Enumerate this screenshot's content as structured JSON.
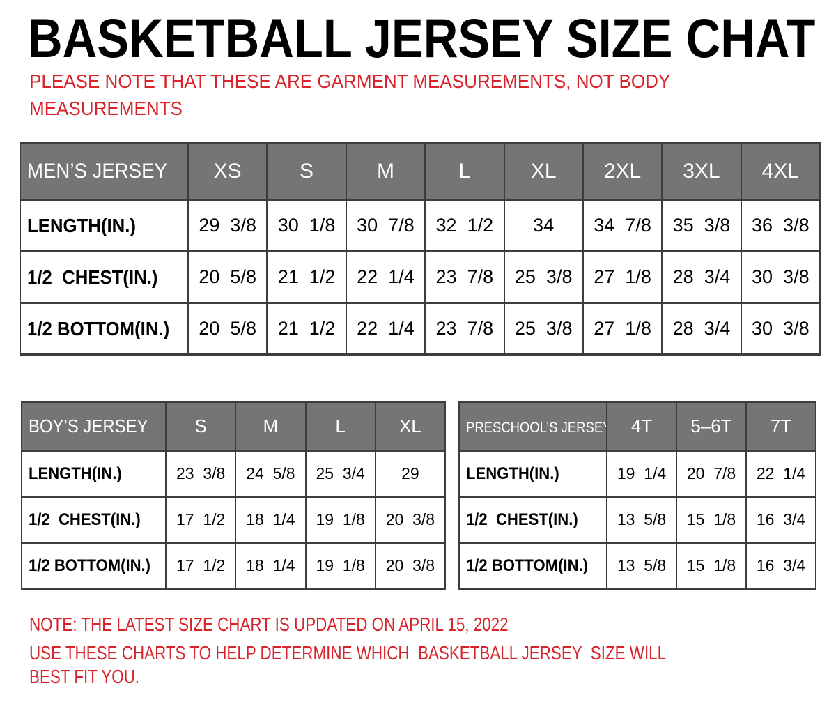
{
  "page": {
    "title": "BASKETBALL JERSEY SIZE CHAT",
    "top_note": "PLEASE NOTE THAT THESE ARE GARMENT MEASUREMENTS, NOT BODY\nMEASUREMENTS",
    "bottom_notes": [
      "NOTE: THE LATEST SIZE CHART IS UPDATED ON APRIL 15, 2022",
      "USE THESE CHARTS TO HELP DETERMINE WHICH  BASKETBALL JERSEY  SIZE WILL BEST FIT YOU."
    ]
  },
  "colors": {
    "accent_red": "#d8232b",
    "header_gray": "#757575",
    "header_text": "#ffffff",
    "border": "#3d3d3d",
    "text": "#000000",
    "background": "#ffffff"
  },
  "tables": [
    {
      "id": "mens",
      "name": "MEN’S JERSEY",
      "sizes": [
        "XS",
        "S",
        "M",
        "L",
        "XL",
        "2XL",
        "3XL",
        "4XL"
      ],
      "rows": [
        {
          "label": "LENGTH(IN.)",
          "values": [
            "29  3/8",
            "30  1/8",
            "30  7/8",
            "32  1/2",
            "34",
            "34  7/8",
            "35  3/8",
            "36  3/8"
          ]
        },
        {
          "label": "1/2  CHEST(IN.)",
          "values": [
            "20  5/8",
            "21  1/2",
            "22  1/4",
            "23  7/8",
            "25  3/8",
            "27  1/8",
            "28  3/4",
            "30  3/8"
          ]
        },
        {
          "label": "1/2 BOTTOM(IN.)",
          "values": [
            "20  5/8",
            "21  1/2",
            "22  1/4",
            "23  7/8",
            "25  3/8",
            "27  1/8",
            "28  3/4",
            "30  3/8"
          ]
        }
      ]
    },
    {
      "id": "boys",
      "name": "BOY’S JERSEY",
      "sizes": [
        "S",
        "M",
        "L",
        "XL"
      ],
      "rows": [
        {
          "label": "LENGTH(IN.)",
          "values": [
            "23  3/8",
            "24  5/8",
            "25  3/4",
            "29"
          ]
        },
        {
          "label": "1/2  CHEST(IN.)",
          "values": [
            "17  1/2",
            "18  1/4",
            "19  1/8",
            "20  3/8"
          ]
        },
        {
          "label": "1/2 BOTTOM(IN.)",
          "values": [
            "17  1/2",
            "18  1/4",
            "19  1/8",
            "20  3/8"
          ]
        }
      ]
    },
    {
      "id": "preschool",
      "name": "PRESCHOOL’S JERSEY",
      "sizes": [
        "4T",
        "5–6T",
        "7T"
      ],
      "rows": [
        {
          "label": "LENGTH(IN.)",
          "values": [
            "19  1/4",
            "20  7/8",
            "22  1/4"
          ]
        },
        {
          "label": "1/2  CHEST(IN.)",
          "values": [
            "13  5/8",
            "15  1/8",
            "16  3/4"
          ]
        },
        {
          "label": "1/2 BOTTOM(IN.)",
          "values": [
            "13  5/8",
            "15  1/8",
            "16  3/4"
          ]
        }
      ]
    }
  ]
}
